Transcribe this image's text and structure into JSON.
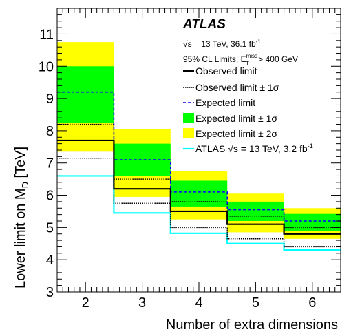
{
  "chart_data": {
    "type": "line",
    "xlabel": "Number of extra dimensions",
    "ylabel": "Lower limit on M",
    "ylabel_sub": "D",
    "ylabel_unit": " [TeV]",
    "xlim": [
      1.5,
      6.5
    ],
    "ylim": [
      3,
      11.8
    ],
    "x": [
      2,
      3,
      4,
      5,
      6
    ],
    "x_tick_labels": [
      "2",
      "3",
      "4",
      "5",
      "6"
    ],
    "y_ticks": [
      3,
      4,
      5,
      6,
      7,
      8,
      9,
      10,
      11
    ],
    "y_tick_labels": [
      "3",
      "4",
      "5",
      "6",
      "7",
      "8",
      "9",
      "10",
      "11"
    ],
    "series": [
      {
        "name": "Observed limit",
        "values": [
          7.7,
          6.2,
          5.5,
          5.1,
          4.8
        ]
      },
      {
        "name": "Observed limit ± 1σ (upper)",
        "values": [
          8.2,
          6.5,
          5.8,
          5.35,
          5.0
        ]
      },
      {
        "name": "Observed limit ± 1σ (lower)",
        "values": [
          7.15,
          5.75,
          5.0,
          4.65,
          4.4
        ]
      },
      {
        "name": "Expected limit",
        "values": [
          9.2,
          7.1,
          6.1,
          5.55,
          5.2
        ]
      },
      {
        "name": "ATLAS √s = 13 TeV, 3.2 fb⁻¹",
        "values": [
          6.6,
          5.45,
          4.82,
          4.5,
          4.3
        ]
      }
    ],
    "bands": [
      {
        "name": "Expected limit ± 2σ",
        "color": "#ffff00",
        "low": [
          7.35,
          5.95,
          5.25,
          4.85,
          4.65
        ],
        "high": [
          10.75,
          8.05,
          6.75,
          6.05,
          5.6
        ]
      },
      {
        "name": "Expected limit ± 1σ",
        "color": "#00ff00",
        "low": [
          8.25,
          6.6,
          5.65,
          5.2,
          4.9
        ],
        "high": [
          10.0,
          7.6,
          6.45,
          5.8,
          5.42
        ]
      }
    ],
    "colors": {
      "observed": "#000000",
      "expected": "#0000ff",
      "prev": "#00ffff",
      "band1": "#00ff00",
      "band2": "#ffff00"
    },
    "annotations": {
      "experiment": "ATLAS",
      "energy_lumi": "√s = 13 TeV, 36.1 fb",
      "energy_lumi_sup": "-1",
      "cl_prefix": "95% CL Limits, E",
      "cl_sup": "miss",
      "cl_sub": "T",
      "cl_suffix": " > 400 GeV"
    },
    "legend": {
      "position": "top-right",
      "observed": "Observed limit",
      "observed_1s": "Observed limit ± 1σ",
      "expected": "Expected limit",
      "expected_1s": "Expected limit ± 1σ",
      "expected_2s": "Expected limit ± 2σ",
      "prev": "ATLAS √s = 13 TeV, 3.2 fb",
      "prev_sup": "-1"
    },
    "grid": false
  }
}
